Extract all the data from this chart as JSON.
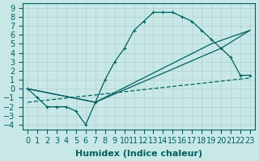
{
  "bg_color": "#c8e8e8",
  "grid_color": "#b0d0d0",
  "line_color": "#006060",
  "xlabel": "Humidex (Indice chaleur)",
  "xlabel_fontsize": 8,
  "ylabel_fontsize": 7,
  "xlim": [
    -0.5,
    23.5
  ],
  "ylim": [
    -4.5,
    9.5
  ],
  "xticks": [
    0,
    1,
    2,
    3,
    4,
    5,
    6,
    7,
    8,
    9,
    10,
    11,
    12,
    13,
    14,
    15,
    16,
    17,
    18,
    19,
    20,
    21,
    22,
    23
  ],
  "yticks": [
    -4,
    -3,
    -2,
    -1,
    0,
    1,
    2,
    3,
    4,
    5,
    6,
    7,
    8,
    9
  ],
  "line1_x": [
    0,
    1,
    2,
    3,
    4,
    5,
    6,
    7,
    8,
    9,
    10,
    11,
    12,
    13,
    14,
    15,
    16,
    17,
    18,
    19,
    20,
    21,
    22,
    23
  ],
  "line1_y": [
    0,
    -1,
    -2,
    -2,
    -2,
    -2.5,
    -4,
    -1.5,
    1,
    3,
    4.5,
    6.5,
    7.5,
    8.5,
    8.5,
    8.5,
    8,
    7.5,
    6.5,
    5.5,
    4.5,
    3.5,
    1.5,
    1.5
  ],
  "line2_x": [
    0,
    7,
    19,
    23
  ],
  "line2_y": [
    0,
    -1.5,
    5,
    6.5
  ],
  "line3_x": [
    0,
    7,
    20,
    23
  ],
  "line3_y": [
    0,
    -1.5,
    4.5,
    6.5
  ],
  "line4_x": [
    0,
    23
  ],
  "line4_y": [
    -1.5,
    1.2
  ]
}
